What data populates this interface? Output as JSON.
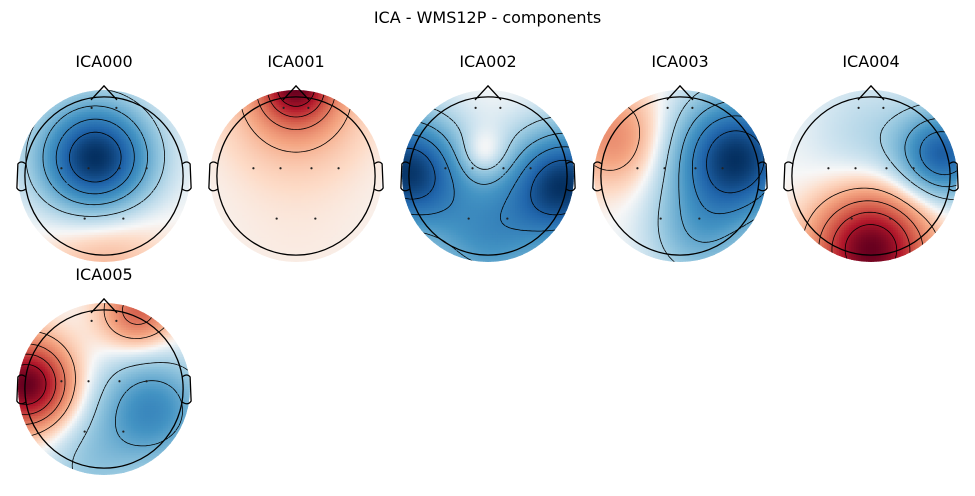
{
  "figure": {
    "title": "ICA - WMS12P - components"
  },
  "chart_data": {
    "type": "topomap",
    "colormap": {
      "negative": "#053061",
      "zero": "#f7f7f7",
      "positive": "#67001f"
    },
    "contours": "black, dashed for negative levels",
    "sensors": [
      {
        "x": -0.16,
        "y": 0.88
      },
      {
        "x": 0.16,
        "y": 0.88
      },
      {
        "x": -0.55,
        "y": 0.1
      },
      {
        "x": -0.2,
        "y": 0.1
      },
      {
        "x": 0.2,
        "y": 0.1
      },
      {
        "x": 0.55,
        "y": 0.1
      },
      {
        "x": -0.25,
        "y": -0.55
      },
      {
        "x": 0.25,
        "y": -0.55
      }
    ],
    "components": [
      {
        "label": "ICA000",
        "sources": [
          {
            "x": -0.1,
            "y": 0.2,
            "w": -1.0,
            "s": 0.45
          },
          {
            "x": 0.0,
            "y": -0.9,
            "w": 0.2,
            "s": 0.5
          }
        ]
      },
      {
        "label": "ICA001",
        "sources": [
          {
            "x": 0.0,
            "y": 1.05,
            "w": 1.0,
            "s": 0.28
          },
          {
            "x": 0.0,
            "y": 0.9,
            "w": 0.45,
            "s": 0.55
          },
          {
            "x": 0.0,
            "y": -0.6,
            "w": 0.05,
            "s": 0.8
          }
        ]
      },
      {
        "label": "ICA002",
        "sources": [
          {
            "x": -0.95,
            "y": 0.05,
            "w": -1.0,
            "s": 0.45
          },
          {
            "x": 0.9,
            "y": -0.1,
            "w": -1.0,
            "s": 0.45
          },
          {
            "x": 0.0,
            "y": -0.7,
            "w": -0.5,
            "s": 0.5
          },
          {
            "x": -0.05,
            "y": 0.25,
            "w": 0.25,
            "s": 0.2
          }
        ]
      },
      {
        "label": "ICA003",
        "sources": [
          {
            "x": 0.65,
            "y": 0.2,
            "w": -1.0,
            "s": 0.5
          },
          {
            "x": -0.75,
            "y": 0.45,
            "w": 0.35,
            "s": 0.4
          },
          {
            "x": 0.2,
            "y": -0.7,
            "w": -0.3,
            "s": 0.4
          }
        ]
      },
      {
        "label": "ICA004",
        "sources": [
          {
            "x": 0.0,
            "y": -0.85,
            "w": 1.0,
            "s": 0.45
          },
          {
            "x": 0.85,
            "y": 0.25,
            "w": -0.75,
            "s": 0.35
          },
          {
            "x": 0.0,
            "y": 0.45,
            "w": -0.15,
            "s": 0.5
          }
        ]
      },
      {
        "label": "ICA005",
        "sources": [
          {
            "x": -0.9,
            "y": 0.05,
            "w": 1.0,
            "s": 0.35
          },
          {
            "x": 0.4,
            "y": 0.9,
            "w": 0.5,
            "s": 0.3
          },
          {
            "x": 0.55,
            "y": -0.25,
            "w": -0.55,
            "s": 0.45
          },
          {
            "x": -0.2,
            "y": -0.9,
            "w": -0.2,
            "s": 0.4
          }
        ]
      }
    ]
  }
}
